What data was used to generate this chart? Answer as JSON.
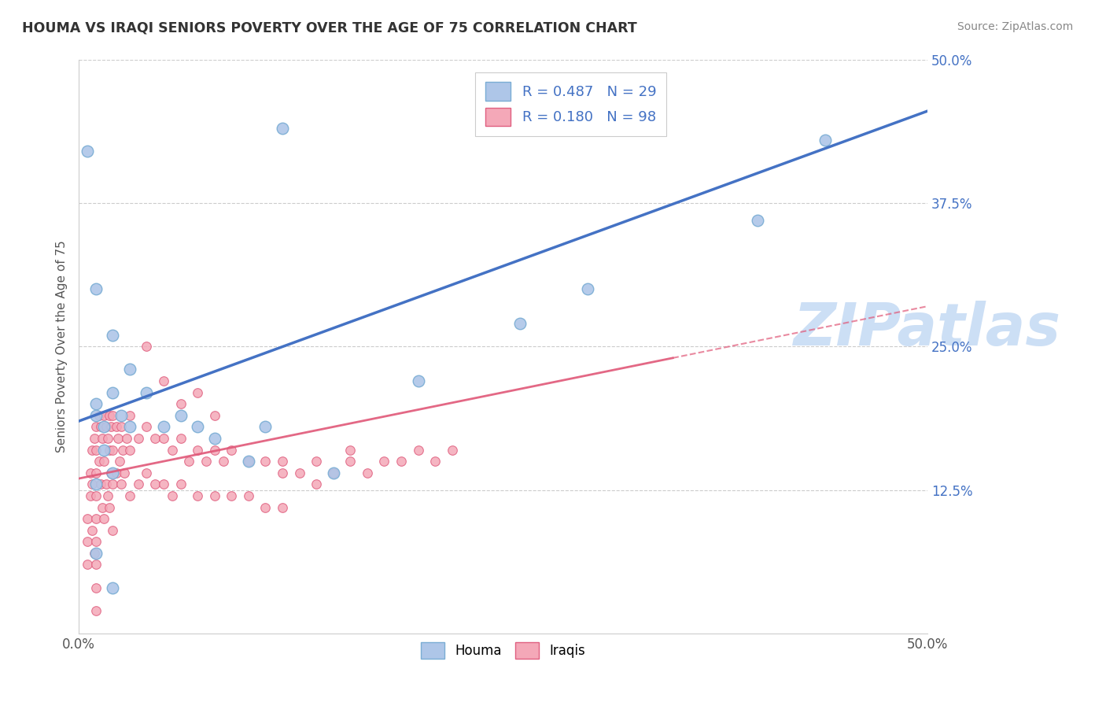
{
  "title": "HOUMA VS IRAQI SENIORS POVERTY OVER THE AGE OF 75 CORRELATION CHART",
  "source_text": "Source: ZipAtlas.com",
  "ylabel": "Seniors Poverty Over the Age of 75",
  "xlim": [
    0,
    0.5
  ],
  "ylim": [
    0,
    0.5
  ],
  "grid_color": "#cccccc",
  "background_color": "#ffffff",
  "houma_color": "#aec6e8",
  "houma_edge_color": "#7aadd4",
  "iraqis_color": "#f4a8b8",
  "iraqis_edge_color": "#e06080",
  "houma_R": 0.487,
  "houma_N": 29,
  "iraqis_R": 0.18,
  "iraqis_N": 98,
  "houma_line_color": "#4472c4",
  "iraqis_line_color": "#e05878",
  "legend_color": "#4472c4",
  "watermark_color": "#ccdff5",
  "houma_x": [
    0.005,
    0.01,
    0.01,
    0.01,
    0.015,
    0.015,
    0.02,
    0.02,
    0.025,
    0.03,
    0.03,
    0.04,
    0.05,
    0.06,
    0.07,
    0.08,
    0.1,
    0.11,
    0.12,
    0.15,
    0.2,
    0.26,
    0.3,
    0.4,
    0.44,
    0.01,
    0.02,
    0.01,
    0.02
  ],
  "houma_y": [
    0.42,
    0.2,
    0.19,
    0.13,
    0.18,
    0.16,
    0.14,
    0.21,
    0.19,
    0.18,
    0.23,
    0.21,
    0.18,
    0.19,
    0.18,
    0.17,
    0.15,
    0.18,
    0.44,
    0.14,
    0.22,
    0.27,
    0.3,
    0.36,
    0.43,
    0.07,
    0.04,
    0.3,
    0.26
  ],
  "iraqis_x": [
    0.005,
    0.005,
    0.005,
    0.007,
    0.007,
    0.008,
    0.008,
    0.008,
    0.009,
    0.009,
    0.01,
    0.01,
    0.01,
    0.01,
    0.01,
    0.01,
    0.01,
    0.01,
    0.01,
    0.012,
    0.012,
    0.013,
    0.013,
    0.014,
    0.014,
    0.015,
    0.015,
    0.015,
    0.016,
    0.016,
    0.017,
    0.017,
    0.018,
    0.018,
    0.018,
    0.019,
    0.019,
    0.02,
    0.02,
    0.02,
    0.02,
    0.022,
    0.022,
    0.023,
    0.024,
    0.025,
    0.025,
    0.026,
    0.027,
    0.028,
    0.03,
    0.03,
    0.03,
    0.035,
    0.035,
    0.04,
    0.04,
    0.045,
    0.045,
    0.05,
    0.05,
    0.055,
    0.055,
    0.06,
    0.06,
    0.065,
    0.07,
    0.07,
    0.075,
    0.08,
    0.08,
    0.085,
    0.09,
    0.09,
    0.1,
    0.1,
    0.11,
    0.11,
    0.12,
    0.12,
    0.13,
    0.14,
    0.15,
    0.16,
    0.17,
    0.18,
    0.19,
    0.2,
    0.21,
    0.22,
    0.04,
    0.05,
    0.06,
    0.07,
    0.08,
    0.12,
    0.14,
    0.16
  ],
  "iraqis_y": [
    0.1,
    0.08,
    0.06,
    0.14,
    0.12,
    0.16,
    0.13,
    0.09,
    0.17,
    0.07,
    0.18,
    0.16,
    0.14,
    0.12,
    0.1,
    0.08,
    0.06,
    0.04,
    0.02,
    0.19,
    0.15,
    0.18,
    0.13,
    0.17,
    0.11,
    0.19,
    0.15,
    0.1,
    0.18,
    0.13,
    0.17,
    0.12,
    0.19,
    0.16,
    0.11,
    0.18,
    0.14,
    0.19,
    0.16,
    0.13,
    0.09,
    0.18,
    0.14,
    0.17,
    0.15,
    0.18,
    0.13,
    0.16,
    0.14,
    0.17,
    0.19,
    0.16,
    0.12,
    0.17,
    0.13,
    0.18,
    0.14,
    0.17,
    0.13,
    0.17,
    0.13,
    0.16,
    0.12,
    0.17,
    0.13,
    0.15,
    0.16,
    0.12,
    0.15,
    0.16,
    0.12,
    0.15,
    0.16,
    0.12,
    0.15,
    0.12,
    0.15,
    0.11,
    0.14,
    0.11,
    0.14,
    0.13,
    0.14,
    0.15,
    0.14,
    0.15,
    0.15,
    0.16,
    0.15,
    0.16,
    0.25,
    0.22,
    0.2,
    0.21,
    0.19,
    0.15,
    0.15,
    0.16
  ]
}
